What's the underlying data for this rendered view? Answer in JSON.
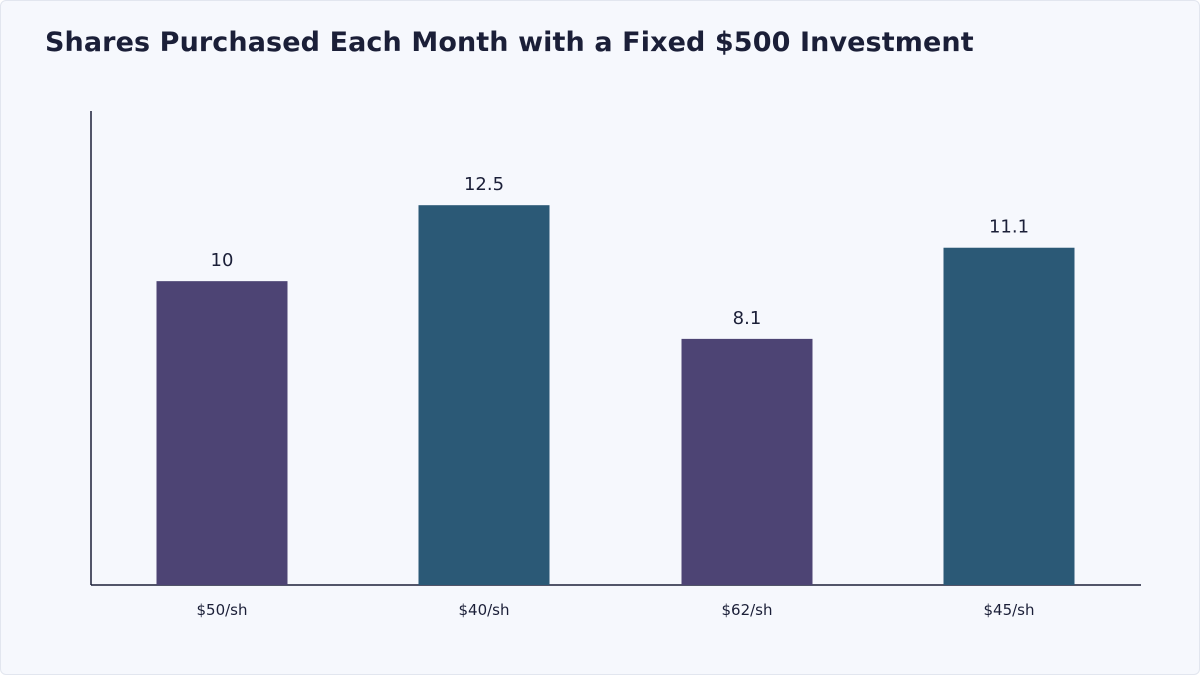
{
  "chart_data": {
    "type": "bar",
    "title": "Shares Purchased Each Month with a Fixed $500 Investment",
    "categories": [
      "$50/sh",
      "$40/sh",
      "$62/sh",
      "$45/sh"
    ],
    "values": [
      10,
      12.5,
      8.1,
      11.1
    ],
    "value_labels": [
      "10",
      "12.5",
      "8.1",
      "11.1"
    ],
    "colors": [
      "#4d4474",
      "#2b5976",
      "#4d4474",
      "#2b5976"
    ],
    "xlabel": "",
    "ylabel": "",
    "ylim": [
      0,
      15.6
    ],
    "grid": false,
    "legend": "none"
  }
}
